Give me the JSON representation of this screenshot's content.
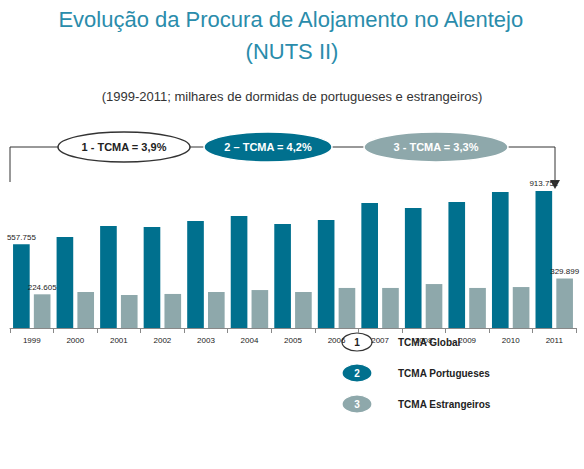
{
  "chart_data": {
    "type": "bar",
    "title": "Evolução da Procura de Alojamento no Alentejo",
    "title_line2": "(NUTS II)",
    "subtitle": "(1999-2011; milhares de dormidas de portugueses e estrangeiros)",
    "categories": [
      "1999",
      "2000",
      "2001",
      "2002",
      "2003",
      "2004",
      "2005",
      "2006",
      "2007",
      "2008",
      "2009",
      "2010",
      "2011"
    ],
    "series": [
      {
        "color": "#00708e",
        "values": [
          557755,
          607000,
          680000,
          674000,
          714000,
          747000,
          694000,
          720000,
          834000,
          800000,
          840000,
          907000,
          913752
        ],
        "value_labels": [
          "557.755",
          null,
          null,
          null,
          null,
          null,
          null,
          null,
          null,
          null,
          null,
          null,
          "913.752"
        ]
      },
      {
        "color": "#8ea8ab",
        "values": [
          224605,
          240000,
          220000,
          227000,
          240000,
          253000,
          240000,
          267000,
          267000,
          293000,
          267000,
          273000,
          329899
        ],
        "value_labels": [
          "224.605",
          null,
          null,
          null,
          null,
          null,
          null,
          null,
          null,
          null,
          null,
          null,
          "329.899"
        ]
      }
    ],
    "annotations": [
      {
        "text": "1 - TCMA = 3,9%",
        "key_number": "1",
        "key_text": "TCMA Global",
        "color": "#ffffff"
      },
      {
        "text": "2 – TCMA = 4,2%",
        "key_number": "2",
        "key_text": "TCMA Portugueses",
        "color": "#00708e"
      },
      {
        "text": "3 - TCMA = 3,3%",
        "key_number": "3",
        "key_text": "TCMA Estrangeiros",
        "color": "#8ea8ab"
      }
    ],
    "tick_labels": "x",
    "grid": false
  }
}
